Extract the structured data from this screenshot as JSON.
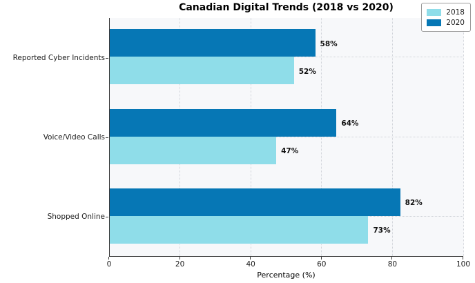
{
  "chart_data": {
    "type": "bar",
    "orientation": "horizontal",
    "title": "Canadian Digital Trends (2018 vs 2020)",
    "categories": [
      "Reported Cyber Incidents",
      "Voice/Video Calls",
      "Shopped Online"
    ],
    "series": [
      {
        "name": "2018",
        "color": "#8fdde9",
        "values": [
          52,
          47,
          73
        ],
        "labels": [
          "52%",
          "47%",
          "73%"
        ]
      },
      {
        "name": "2020",
        "color": "#0677b5",
        "values": [
          58,
          64,
          82
        ],
        "labels": [
          "58%",
          "64%",
          "82%"
        ]
      }
    ],
    "series_top_to_bottom_in_group": [
      "2020",
      "2018"
    ],
    "xlabel": "Percentage (%)",
    "xlim": [
      0,
      100
    ],
    "xticks": [
      "0",
      "20",
      "40",
      "60",
      "80",
      "100"
    ],
    "xtick_values": [
      0,
      20,
      40,
      60,
      80,
      100
    ],
    "grid": true,
    "legend": {
      "position": "top-right",
      "entries": [
        {
          "label": "2018",
          "color": "#8fdde9"
        },
        {
          "label": "2020",
          "color": "#0677b5"
        }
      ]
    },
    "plot_background": "#f7f8fa",
    "value_label_color": "#111111"
  }
}
